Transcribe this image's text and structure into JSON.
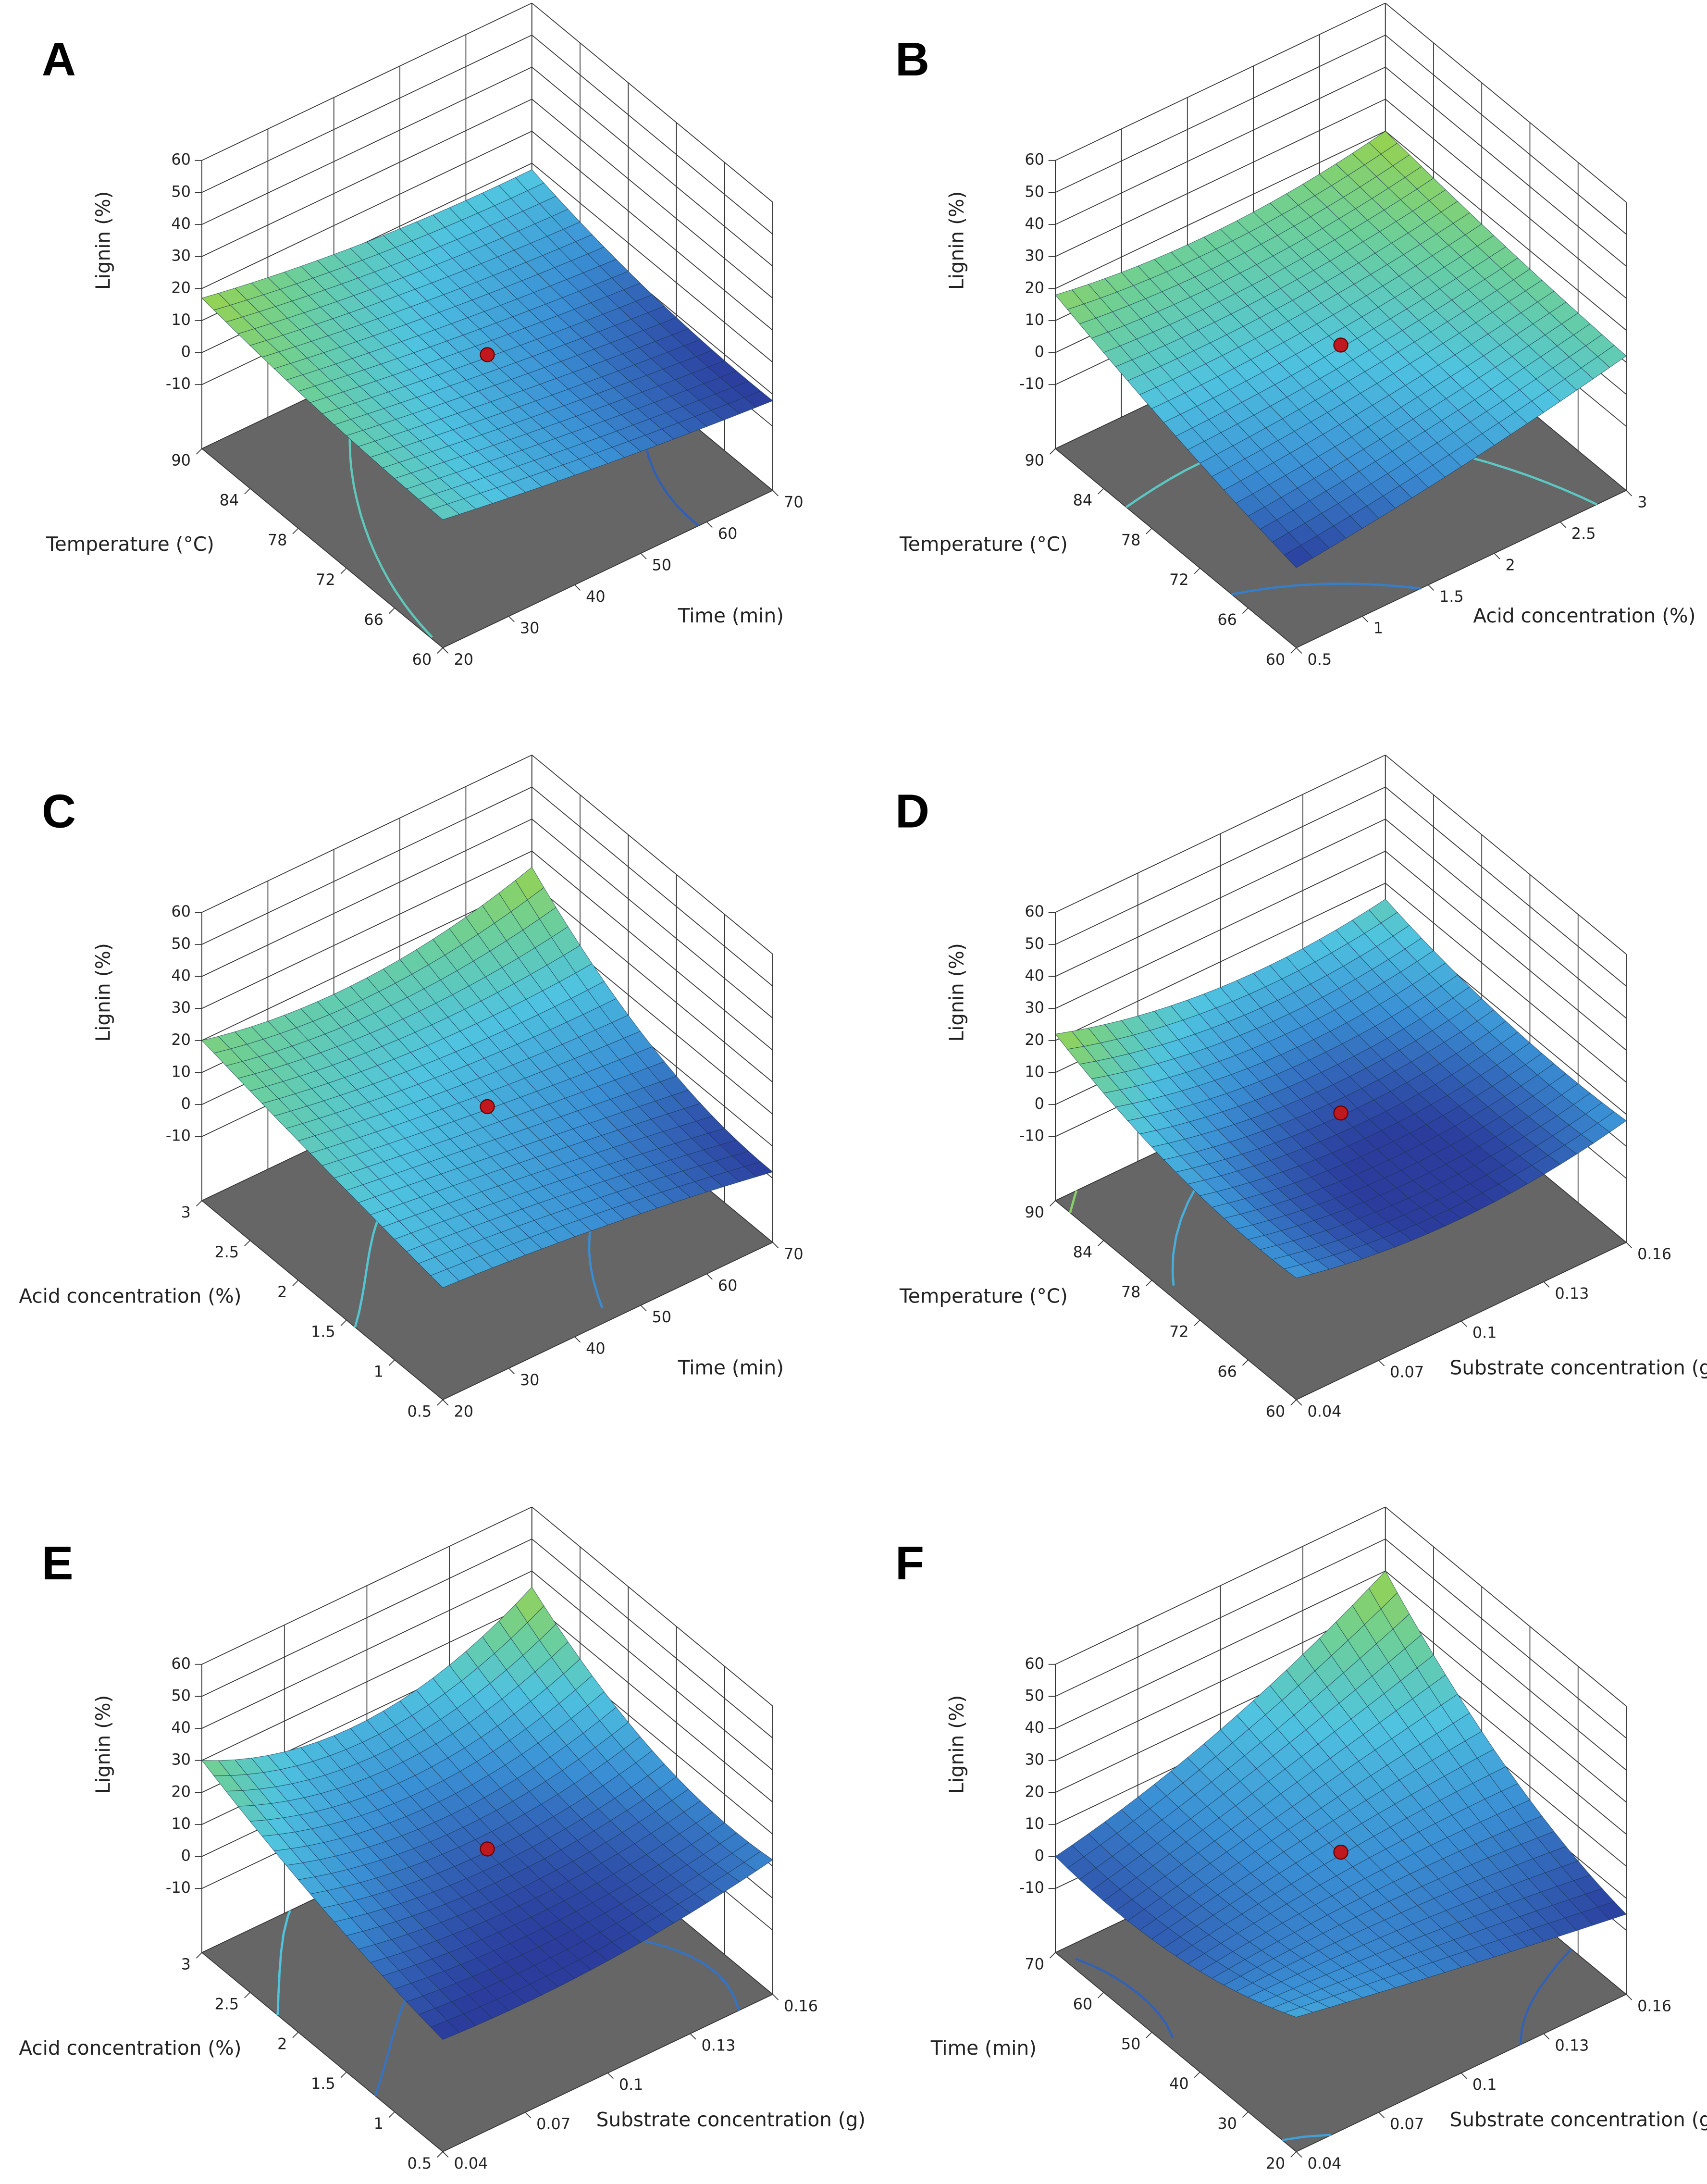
{
  "chart_data": [
    {
      "type": "surface",
      "title": "A",
      "zlabel": "Lignin (%)",
      "ylabel": "Temperature (°C)",
      "xlabel": "Time (min)",
      "yticks": [
        60,
        66,
        72,
        78,
        84,
        90
      ],
      "ylim": [
        60,
        90
      ],
      "xticks": [
        20,
        30,
        40,
        50,
        60,
        70
      ],
      "xlim": [
        20,
        70
      ],
      "zticks": [
        -10,
        0,
        10,
        20,
        30,
        40,
        50,
        60
      ],
      "zlim": [
        -30,
        60
      ],
      "z": [
        [
          10,
          3,
          -2
        ],
        [
          12,
          5,
          0
        ],
        [
          17,
          10,
          8
        ]
      ],
      "center_point_value": 5
    },
    {
      "type": "surface",
      "title": "B",
      "zlabel": "Lignin (%)",
      "ylabel": "Temperature (°C)",
      "xlabel": "Acid concentration (%)",
      "yticks": [
        60,
        66,
        72,
        78,
        84,
        90
      ],
      "ylim": [
        60,
        90
      ],
      "xticks": [
        0.5,
        1,
        1.5,
        2,
        2.5,
        3
      ],
      "xlim": [
        0.5,
        3
      ],
      "zticks": [
        -10,
        0,
        10,
        20,
        30,
        40,
        50,
        60
      ],
      "zlim": [
        -30,
        60
      ],
      "z": [
        [
          -5,
          2,
          12
        ],
        [
          5,
          8,
          15
        ],
        [
          18,
          14,
          20
        ]
      ],
      "center_point_value": 8
    },
    {
      "type": "surface",
      "title": "C",
      "zlabel": "Lignin (%)",
      "ylabel": "Acid concentration (%)",
      "xlabel": "Time (min)",
      "yticks": [
        0.5,
        1,
        1.5,
        2,
        2.5,
        3
      ],
      "ylim": [
        0.5,
        3
      ],
      "xticks": [
        20,
        30,
        40,
        50,
        60,
        70
      ],
      "xlim": [
        20,
        70
      ],
      "zticks": [
        -10,
        0,
        10,
        20,
        30,
        40,
        50,
        60
      ],
      "zlim": [
        -30,
        60
      ],
      "z": [
        [
          5,
          0,
          -8
        ],
        [
          12,
          5,
          0
        ],
        [
          20,
          15,
          25
        ]
      ],
      "center_point_value": 5
    },
    {
      "type": "surface",
      "title": "D",
      "zlabel": "Lignin (%)",
      "ylabel": "Temperature (°C)",
      "xlabel": "Substrate concentration (g)",
      "yticks": [
        60,
        66,
        72,
        78,
        84,
        90
      ],
      "ylim": [
        60,
        90
      ],
      "xticks": [
        0.04,
        0.07,
        0.1,
        0.13,
        0.16
      ],
      "xlim": [
        0.04,
        0.16
      ],
      "zticks": [
        -10,
        0,
        10,
        20,
        30,
        40,
        50,
        60
      ],
      "zlim": [
        -30,
        60
      ],
      "z": [
        [
          8,
          2,
          8
        ],
        [
          10,
          3,
          8
        ],
        [
          22,
          12,
          15
        ]
      ],
      "center_point_value": 3
    },
    {
      "type": "surface",
      "title": "E",
      "zlabel": "Lignin (%)",
      "ylabel": "Acid concentration (%)",
      "xlabel": "Substrate concentration (g)",
      "yticks": [
        0.5,
        1,
        1.5,
        2,
        2.5,
        3
      ],
      "ylim": [
        0.5,
        3
      ],
      "xticks": [
        0.04,
        0.07,
        0.1,
        0.13,
        0.16
      ],
      "xlim": [
        0.04,
        0.16
      ],
      "zticks": [
        -10,
        0,
        10,
        20,
        30,
        40,
        50,
        60
      ],
      "zlim": [
        -30,
        60
      ],
      "z": [
        [
          5,
          5,
          12
        ],
        [
          15,
          8,
          15
        ],
        [
          30,
          18,
          35
        ]
      ],
      "center_point_value": 8
    },
    {
      "type": "surface",
      "title": "F",
      "zlabel": "Lignin (%)",
      "ylabel": "Time (min)",
      "xlabel": "Substrate concentration (g)",
      "yticks": [
        20,
        30,
        40,
        50,
        60,
        70
      ],
      "ylim": [
        20,
        70
      ],
      "xticks": [
        0.04,
        0.07,
        0.1,
        0.13,
        0.16
      ],
      "xlim": [
        0.04,
        0.16
      ],
      "zticks": [
        -10,
        0,
        10,
        20,
        30,
        40,
        50,
        60
      ],
      "zlim": [
        -30,
        60
      ],
      "z": [
        [
          12,
          3,
          -5
        ],
        [
          0,
          7,
          10
        ],
        [
          0,
          15,
          40
        ]
      ],
      "center_point_value": 7
    }
  ]
}
